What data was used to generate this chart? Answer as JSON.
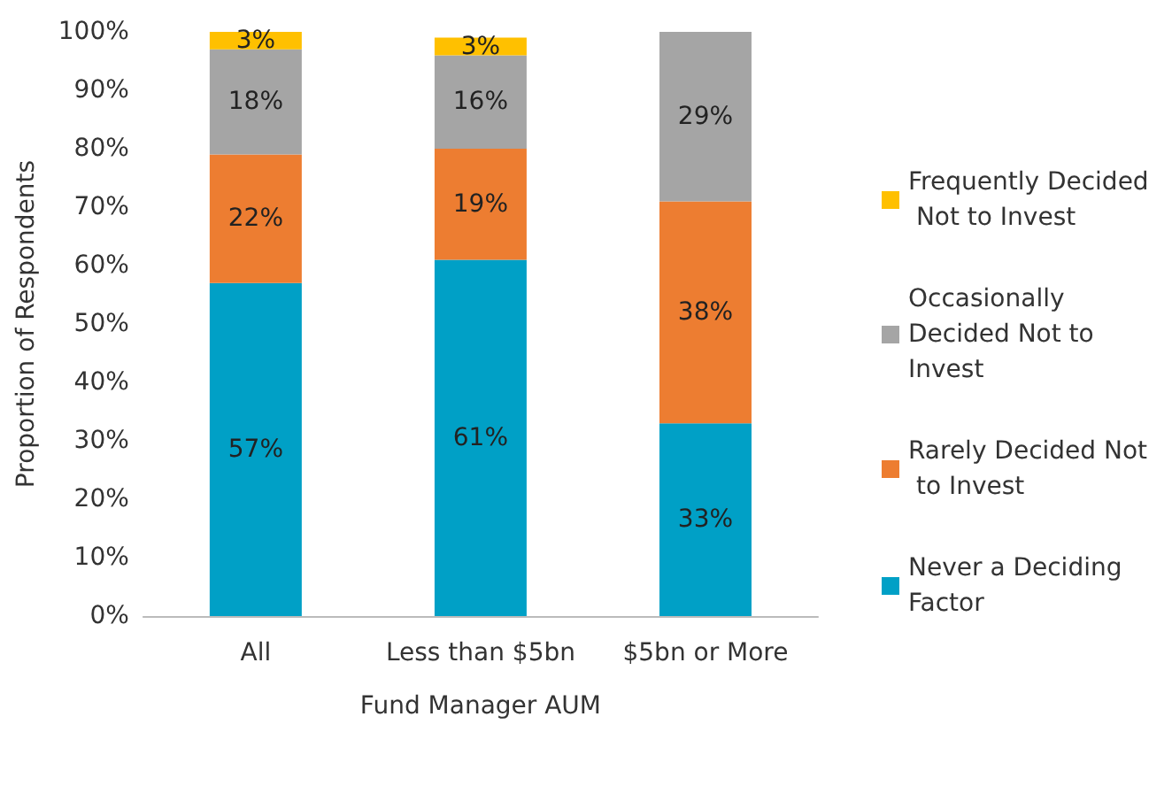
{
  "chart_data": {
    "type": "bar",
    "stacked": true,
    "xlabel": "Fund Manager AUM",
    "ylabel": "Proportion of Respondents",
    "categories": [
      "All",
      "Less than $5bn",
      "$5bn or More"
    ],
    "series": [
      {
        "name": "Never a Deciding Factor",
        "color": "#00a0c6",
        "values": [
          57,
          61,
          33
        ],
        "value_labels": [
          "57%",
          "61%",
          "33%"
        ]
      },
      {
        "name": "Rarely Decided Not to Invest",
        "color": "#ed7d31",
        "values": [
          22,
          19,
          38
        ],
        "value_labels": [
          "22%",
          "19%",
          "38%"
        ]
      },
      {
        "name": "Occasionally Decided Not to Invest",
        "color": "#a5a5a5",
        "values": [
          18,
          16,
          29
        ],
        "value_labels": [
          "18%",
          "16%",
          "29%"
        ]
      },
      {
        "name": "Frequently Decided Not to Invest",
        "color": "#ffc000",
        "values": [
          3,
          3,
          null
        ],
        "value_labels": [
          "3%",
          "3%",
          null
        ]
      }
    ],
    "ylim": [
      0,
      100
    ],
    "yticks": [
      {
        "value": 0,
        "label": "0%"
      },
      {
        "value": 10,
        "label": "10%"
      },
      {
        "value": 20,
        "label": "20%"
      },
      {
        "value": 30,
        "label": "30%"
      },
      {
        "value": 40,
        "label": "40%"
      },
      {
        "value": 50,
        "label": "50%"
      },
      {
        "value": 60,
        "label": "60%"
      },
      {
        "value": 70,
        "label": "70%"
      },
      {
        "value": 80,
        "label": "80%"
      },
      {
        "value": 90,
        "label": "90%"
      },
      {
        "value": 100,
        "label": "100%"
      }
    ],
    "grid": false,
    "legend": "right"
  }
}
